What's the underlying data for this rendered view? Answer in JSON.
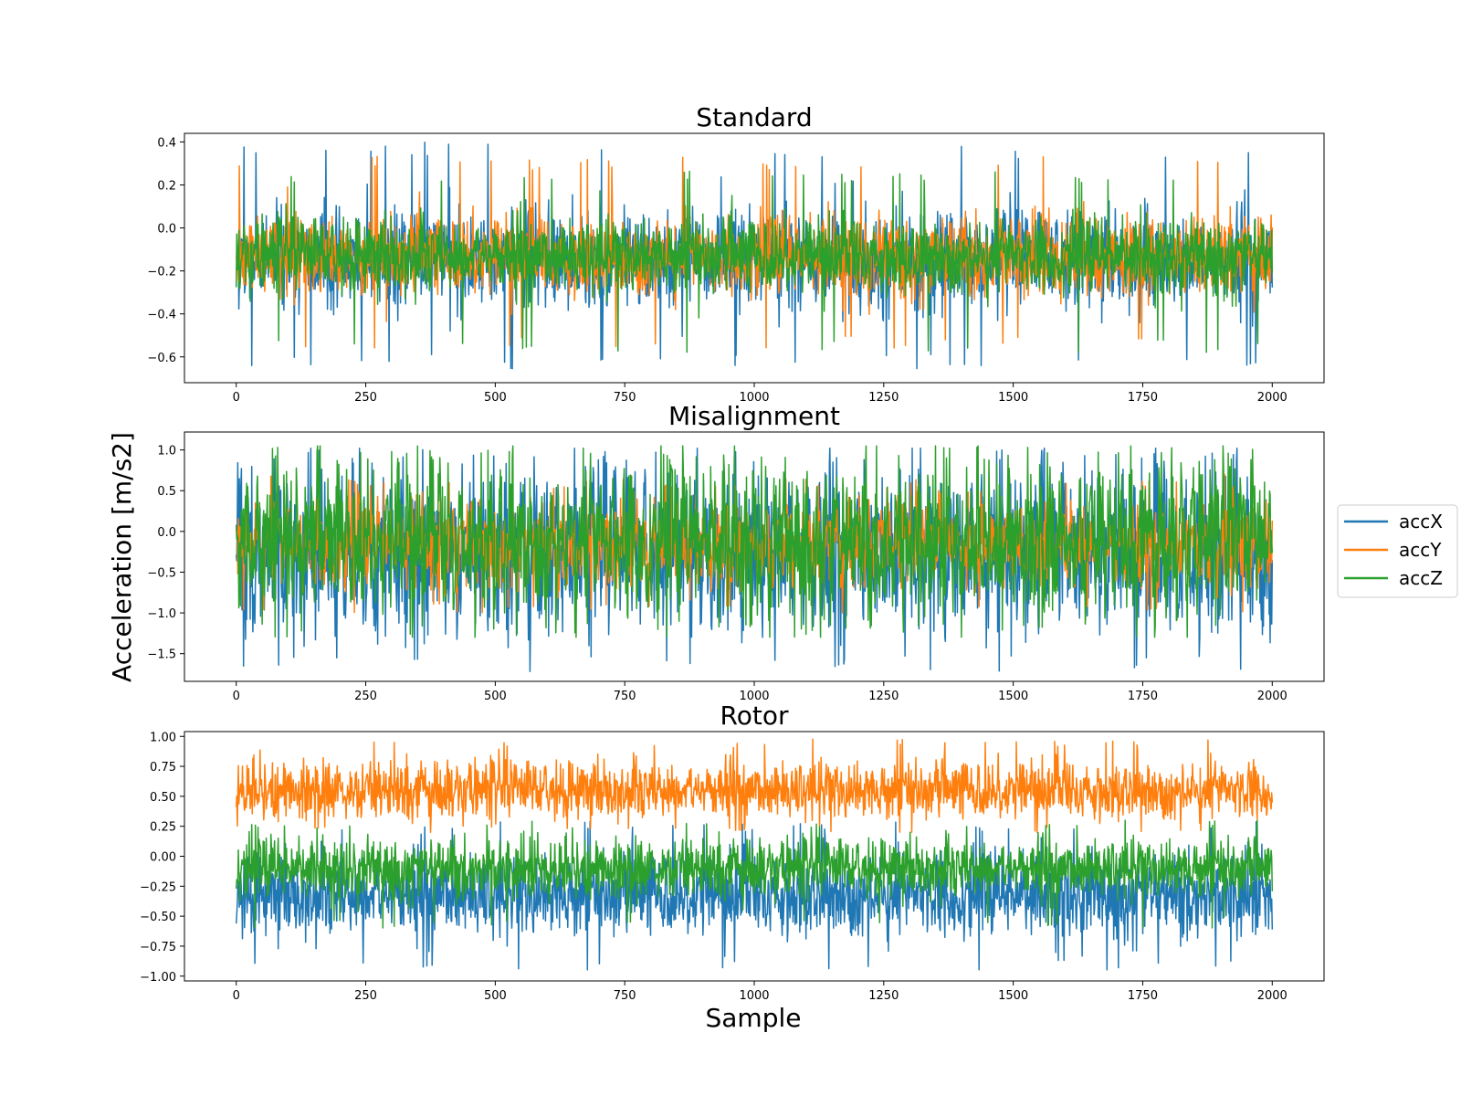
{
  "figure": {
    "ylabel": "Acceleration [m/s2]",
    "xlabel": "Sample"
  },
  "legend": {
    "placement": "right",
    "entries": [
      {
        "name": "accX",
        "color": "#1f77b4"
      },
      {
        "name": "accY",
        "color": "#ff7f0e"
      },
      {
        "name": "accZ",
        "color": "#2ca02c"
      }
    ]
  },
  "chart_data": [
    {
      "type": "line",
      "title": "Standard",
      "xlim": [
        -100,
        2100
      ],
      "ylim": [
        -0.72,
        0.44
      ],
      "xticks": [
        0,
        250,
        500,
        750,
        1000,
        1250,
        1500,
        1750,
        2000
      ],
      "yticks": [
        -0.6,
        -0.4,
        -0.2,
        0.0,
        0.2,
        0.4
      ],
      "ytick_labels": [
        "−0.6",
        "−0.4",
        "−0.2",
        "0.0",
        "0.2",
        "0.4"
      ],
      "x_range": [
        0,
        2000
      ],
      "series": [
        {
          "name": "accX",
          "color": "#1f77b4",
          "mean": -0.15,
          "std": 0.11,
          "min": -0.66,
          "max": 0.4
        },
        {
          "name": "accY",
          "color": "#ff7f0e",
          "mean": -0.13,
          "std": 0.09,
          "min": -0.56,
          "max": 0.34
        },
        {
          "name": "accZ",
          "color": "#2ca02c",
          "mean": -0.13,
          "std": 0.085,
          "min": -0.58,
          "max": 0.27
        }
      ]
    },
    {
      "type": "line",
      "title": "Misalignment",
      "xlim": [
        -100,
        2100
      ],
      "ylim": [
        -1.84,
        1.22
      ],
      "xticks": [
        0,
        250,
        500,
        750,
        1000,
        1250,
        1500,
        1750,
        2000
      ],
      "yticks": [
        -1.5,
        -1.0,
        -0.5,
        0.0,
        0.5,
        1.0
      ],
      "ytick_labels": [
        "−1.5",
        "−1.0",
        "−0.5",
        "0.0",
        "0.5",
        "1.0"
      ],
      "x_range": [
        0,
        2000
      ],
      "series": [
        {
          "name": "accX",
          "color": "#1f77b4",
          "mean": -0.25,
          "std": 0.45,
          "min": -1.72,
          "max": 1.02
        },
        {
          "name": "accY",
          "color": "#ff7f0e",
          "mean": -0.15,
          "std": 0.25,
          "min": -1.0,
          "max": 0.7
        },
        {
          "name": "accZ",
          "color": "#2ca02c",
          "mean": -0.1,
          "std": 0.42,
          "min": -1.3,
          "max": 1.05
        }
      ]
    },
    {
      "type": "line",
      "title": "Rotor",
      "xlim": [
        -100,
        2100
      ],
      "ylim": [
        -1.04,
        1.04
      ],
      "xticks": [
        0,
        250,
        500,
        750,
        1000,
        1250,
        1500,
        1750,
        2000
      ],
      "yticks": [
        -1.0,
        -0.75,
        -0.5,
        -0.25,
        0.0,
        0.25,
        0.5,
        0.75,
        1.0
      ],
      "ytick_labels": [
        "−1.00",
        "−0.75",
        "−0.50",
        "−0.25",
        "0.00",
        "0.25",
        "0.50",
        "0.75",
        "1.00"
      ],
      "x_range": [
        0,
        2000
      ],
      "series": [
        {
          "name": "accX",
          "color": "#1f77b4",
          "mean": -0.32,
          "std": 0.17,
          "min": -0.95,
          "max": 0.3
        },
        {
          "name": "accY",
          "color": "#ff7f0e",
          "mean": 0.55,
          "std": 0.12,
          "min": 0.2,
          "max": 0.98
        },
        {
          "name": "accZ",
          "color": "#2ca02c",
          "mean": -0.1,
          "std": 0.12,
          "min": -0.6,
          "max": 0.3
        }
      ]
    }
  ]
}
